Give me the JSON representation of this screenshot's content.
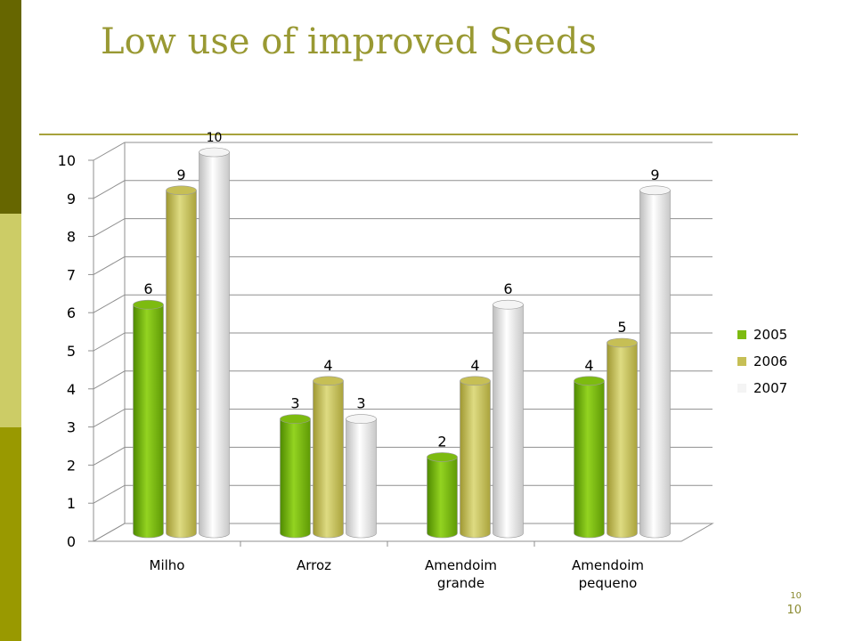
{
  "slide": {
    "title": "Low use of improved Seeds",
    "page_number_small": "10",
    "page_number": "10"
  },
  "colors": {
    "accent": "#999933",
    "sidebar": [
      "#666600",
      "#cccc66",
      "#999900"
    ],
    "series": [
      "#7dbb10",
      "#c6bf55",
      "#f4f4f4"
    ]
  },
  "chart_data": {
    "type": "bar",
    "categories": [
      [
        "Milho"
      ],
      [
        "Arroz"
      ],
      [
        "Amendoim",
        "grande"
      ],
      [
        "Amendoim",
        "pequeno"
      ]
    ],
    "series": [
      {
        "name": "2005",
        "values": [
          6,
          3,
          2,
          4
        ]
      },
      {
        "name": "2006",
        "values": [
          9,
          4,
          4,
          5
        ]
      },
      {
        "name": "2007",
        "values": [
          10,
          3,
          6,
          9
        ]
      }
    ],
    "ylim": [
      0,
      10
    ],
    "yticks": [
      0,
      1,
      2,
      3,
      4,
      5,
      6,
      7,
      8,
      9,
      10
    ],
    "data_labels": true,
    "grid": true,
    "legend": "right",
    "style": "3d-cylinder"
  }
}
